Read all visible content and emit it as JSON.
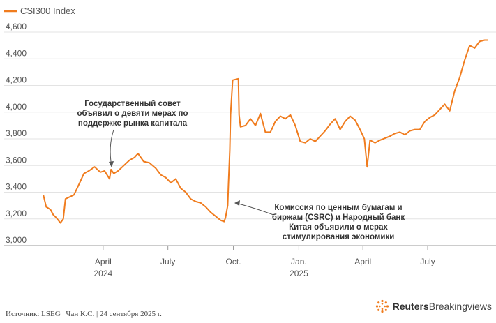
{
  "chart_data": {
    "type": "line",
    "legend": "CSI300 Index",
    "legend_position": "top-left",
    "series_color": "#f07c1e",
    "grid": true,
    "ylim": [
      3000,
      4600
    ],
    "yticks": [
      "3,000",
      "3,200",
      "3,400",
      "3,600",
      "3,800",
      "4,000",
      "4,200",
      "4,400",
      "4,600"
    ],
    "xticks": [
      {
        "label": "April",
        "sub": "2024"
      },
      {
        "label": "July",
        "sub": ""
      },
      {
        "label": "Oct.",
        "sub": ""
      },
      {
        "label": "Jan.",
        "sub": "2025"
      },
      {
        "label": "April",
        "sub": ""
      },
      {
        "label": "July",
        "sub": ""
      }
    ],
    "x": [
      "2024-01-08",
      "2024-01-12",
      "2024-01-18",
      "2024-01-22",
      "2024-01-26",
      "2024-02-01",
      "2024-02-05",
      "2024-02-08",
      "2024-02-20",
      "2024-02-28",
      "2024-03-05",
      "2024-03-12",
      "2024-03-20",
      "2024-03-28",
      "2024-04-03",
      "2024-04-10",
      "2024-04-12",
      "2024-04-16",
      "2024-04-22",
      "2024-04-30",
      "2024-05-08",
      "2024-05-15",
      "2024-05-20",
      "2024-05-28",
      "2024-06-05",
      "2024-06-14",
      "2024-06-21",
      "2024-06-28",
      "2024-07-05",
      "2024-07-12",
      "2024-07-19",
      "2024-07-26",
      "2024-08-02",
      "2024-08-09",
      "2024-08-16",
      "2024-08-23",
      "2024-08-30",
      "2024-09-06",
      "2024-09-13",
      "2024-09-18",
      "2024-09-20",
      "2024-09-23",
      "2024-09-24",
      "2024-09-26",
      "2024-09-27",
      "2024-09-30",
      "2024-10-08",
      "2024-10-09",
      "2024-10-11",
      "2024-10-18",
      "2024-10-25",
      "2024-11-01",
      "2024-11-08",
      "2024-11-15",
      "2024-11-22",
      "2024-11-29",
      "2024-12-06",
      "2024-12-13",
      "2024-12-20",
      "2024-12-27",
      "2025-01-03",
      "2025-01-10",
      "2025-01-17",
      "2025-01-24",
      "2025-02-07",
      "2025-02-14",
      "2025-02-21",
      "2025-02-28",
      "2025-03-07",
      "2025-03-14",
      "2025-03-21",
      "2025-03-28",
      "2025-04-03",
      "2025-04-07",
      "2025-04-11",
      "2025-04-18",
      "2025-04-25",
      "2025-05-09",
      "2025-05-16",
      "2025-05-23",
      "2025-05-30",
      "2025-06-06",
      "2025-06-13",
      "2025-06-20",
      "2025-06-27",
      "2025-07-04",
      "2025-07-11",
      "2025-07-18",
      "2025-07-25",
      "2025-08-01",
      "2025-08-08",
      "2025-08-15",
      "2025-08-22",
      "2025-08-29",
      "2025-09-05",
      "2025-09-12",
      "2025-09-19",
      "2025-09-24"
    ],
    "y": [
      3380,
      3290,
      3270,
      3230,
      3210,
      3170,
      3200,
      3350,
      3380,
      3470,
      3540,
      3560,
      3590,
      3550,
      3560,
      3500,
      3570,
      3540,
      3560,
      3600,
      3640,
      3660,
      3690,
      3630,
      3620,
      3580,
      3530,
      3510,
      3470,
      3500,
      3430,
      3400,
      3350,
      3330,
      3320,
      3290,
      3250,
      3220,
      3190,
      3180,
      3210,
      3300,
      3450,
      3710,
      3980,
      4240,
      4250,
      3980,
      3890,
      3900,
      3950,
      3900,
      3990,
      3850,
      3850,
      3930,
      3970,
      3950,
      3980,
      3900,
      3780,
      3770,
      3800,
      3780,
      3860,
      3910,
      3950,
      3870,
      3930,
      3970,
      3940,
      3870,
      3800,
      3590,
      3790,
      3770,
      3790,
      3820,
      3840,
      3850,
      3830,
      3860,
      3870,
      3870,
      3930,
      3960,
      3980,
      4020,
      4060,
      4010,
      4160,
      4260,
      4390,
      4500,
      4480,
      4530,
      4540,
      4540
    ]
  },
  "annotations": [
    {
      "lines": [
        "Государственный совет",
        "объявил о девяти мерах по",
        "поддержке рынка капитала"
      ]
    },
    {
      "lines": [
        "Комиссия по ценным бумагам и",
        "биржам (CSRC) и Народный банк",
        "Китая объявили о мерах",
        "стимулирования экономики"
      ]
    }
  ],
  "footer": {
    "source": "Источник: LSEG | Чан К.С. | 24 сентября 2025 г.",
    "brand_bold": "Reuters",
    "brand_light": "Breakingviews"
  }
}
